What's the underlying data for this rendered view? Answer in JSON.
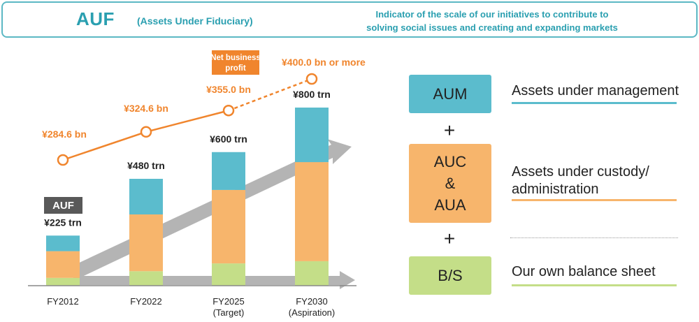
{
  "header": {
    "title": "AUF",
    "subtitle": "(Assets Under Fiduciary)",
    "description_line1": "Indicator of the scale of our initiatives to contribute to",
    "description_line2": "solving social issues and creating and expanding markets"
  },
  "colors": {
    "teal": "#5bbccd",
    "orange_bar": "#f7b56c",
    "green_bar": "#c4de88",
    "profit_line": "#f0852d",
    "arrow_gray": "#b4b4b4",
    "auf_tag": "#595959"
  },
  "chart_data": {
    "type": "bar",
    "stacked": true,
    "categories": [
      "FY2012",
      "FY2022",
      "FY2025",
      "FY2030"
    ],
    "category_sublabels": [
      "",
      "",
      "(Target)",
      "(Aspiration)"
    ],
    "series": [
      {
        "key": "bs",
        "values": [
          35,
          65,
          100,
          110
        ],
        "color": "#c4de88"
      },
      {
        "key": "auc",
        "values": [
          120,
          255,
          330,
          445
        ],
        "color": "#f7b56c"
      },
      {
        "key": "aum",
        "values": [
          70,
          160,
          170,
          245
        ],
        "color": "#5bbccd"
      }
    ],
    "totals": [
      225,
      480,
      600,
      800
    ],
    "total_labels": [
      "¥225 trn",
      "¥480 trn",
      "¥600 trn",
      "¥800 trn"
    ],
    "auf_tag": "AUF",
    "ylim": [
      0,
      800
    ],
    "profit_line": {
      "legend_label_line1": "Net business",
      "legend_label_line2": "profit",
      "values": [
        284.6,
        324.6,
        355.0,
        400.0
      ],
      "labels": [
        "¥284.6 bn",
        "¥324.6 bn",
        "¥355.0 bn",
        "¥400.0 bn or more"
      ],
      "last_segment_dashed": true
    }
  },
  "legend_panel": {
    "aum_label": "AUM",
    "auc_label_1": "AUC",
    "auc_label_amp": "&",
    "auc_label_2": "AUA",
    "bs_label": "B/S",
    "plus": "+",
    "aum_desc": "Assets under management",
    "auc_desc_line1": "Assets under custody/",
    "auc_desc_line2": "administration",
    "bs_desc": "Our own balance sheet"
  }
}
